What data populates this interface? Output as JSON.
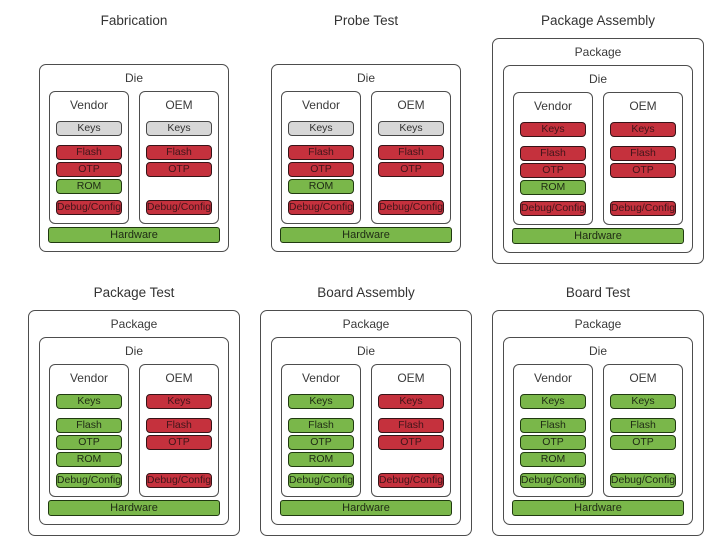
{
  "palette": {
    "gray_fill": "#d7d7d7",
    "red_fill": "#c5313d",
    "green_fill": "#7ab74a",
    "container_border": "#4d4d4d",
    "title_text": "#333333"
  },
  "labels": {
    "package": "Package",
    "die": "Die",
    "vendor": "Vendor",
    "oem": "OEM",
    "keys": "Keys",
    "flash": "Flash",
    "otp": "OTP",
    "rom": "ROM",
    "debug": "Debug/Config",
    "hardware": "Hardware"
  },
  "stages": [
    {
      "title": "Fabrication",
      "has_package": false,
      "vendor": {
        "keys": "gray",
        "flash": "red",
        "otp": "red",
        "rom": "green",
        "debug": "red"
      },
      "oem": {
        "keys": "gray",
        "flash": "red",
        "otp": "red",
        "debug": "red"
      },
      "hardware": "green"
    },
    {
      "title": "Probe Test",
      "has_package": false,
      "vendor": {
        "keys": "gray",
        "flash": "red",
        "otp": "red",
        "rom": "green",
        "debug": "red"
      },
      "oem": {
        "keys": "gray",
        "flash": "red",
        "otp": "red",
        "debug": "red"
      },
      "hardware": "green"
    },
    {
      "title": "Package Assembly",
      "has_package": true,
      "vendor": {
        "keys": "red",
        "flash": "red",
        "otp": "red",
        "rom": "green",
        "debug": "red"
      },
      "oem": {
        "keys": "red",
        "flash": "red",
        "otp": "red",
        "debug": "red"
      },
      "hardware": "green"
    },
    {
      "title": "Package Test",
      "has_package": true,
      "vendor": {
        "keys": "green",
        "flash": "green",
        "otp": "green",
        "rom": "green",
        "debug": "green"
      },
      "oem": {
        "keys": "red",
        "flash": "red",
        "otp": "red",
        "debug": "red"
      },
      "hardware": "green"
    },
    {
      "title": "Board Assembly",
      "has_package": true,
      "vendor": {
        "keys": "green",
        "flash": "green",
        "otp": "green",
        "rom": "green",
        "debug": "green"
      },
      "oem": {
        "keys": "red",
        "flash": "red",
        "otp": "red",
        "debug": "red"
      },
      "hardware": "green"
    },
    {
      "title": "Board Test",
      "has_package": true,
      "vendor": {
        "keys": "green",
        "flash": "green",
        "otp": "green",
        "rom": "green",
        "debug": "green"
      },
      "oem": {
        "keys": "green",
        "flash": "green",
        "otp": "green",
        "debug": "green"
      },
      "hardware": "green"
    }
  ]
}
